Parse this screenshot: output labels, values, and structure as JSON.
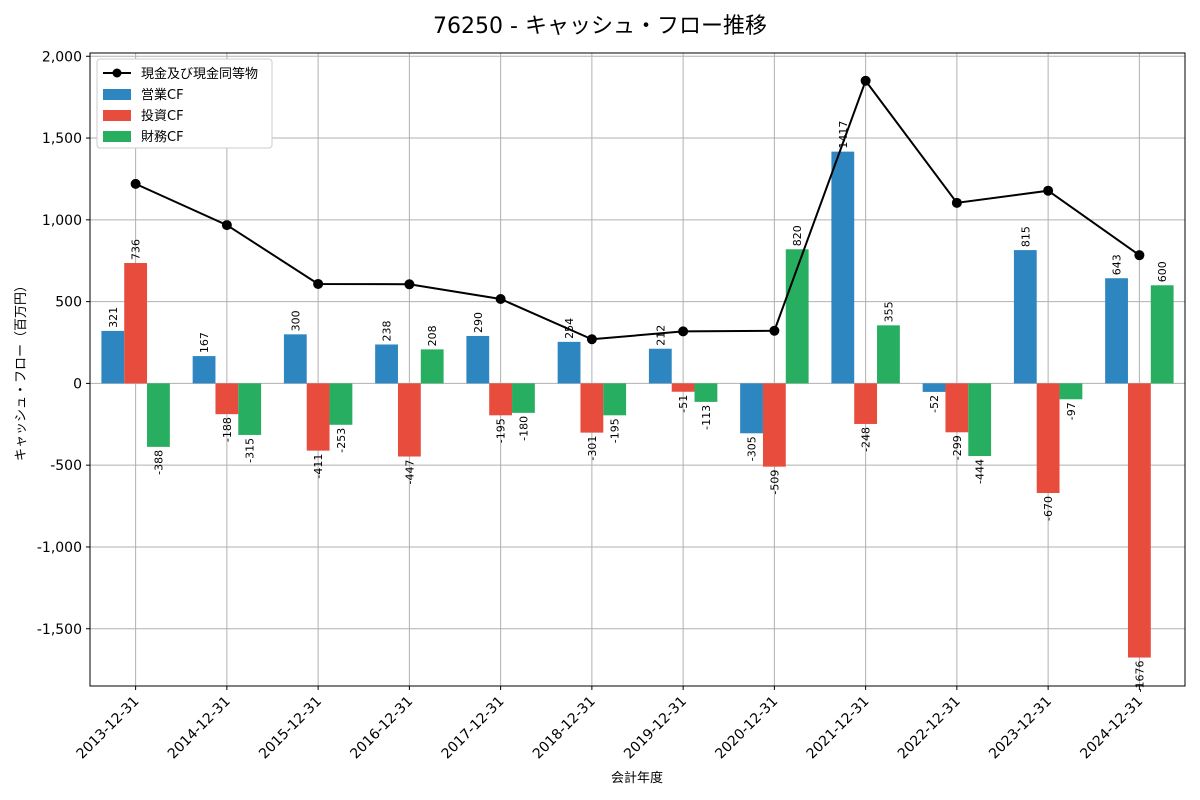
{
  "chart_data": {
    "type": "bar",
    "title": "76250 - キャッシュ・フロー推移",
    "xlabel": "会計年度",
    "ylabel": "キャッシュ・フロー（百万円）",
    "ylim": [
      -1850,
      2020
    ],
    "yticks": [
      2000,
      1500,
      1000,
      500,
      0,
      -500,
      -1000,
      -1500
    ],
    "ytick_labels": [
      "2,000",
      "1,500",
      "1,000",
      "500",
      "0",
      "-500",
      "-1,000",
      "-1,500"
    ],
    "grid": true,
    "legend_position": "top-left",
    "categories": [
      "2013-12-31",
      "2014-12-31",
      "2015-12-31",
      "2016-12-31",
      "2017-12-31",
      "2018-12-31",
      "2019-12-31",
      "2020-12-31",
      "2021-12-31",
      "2022-12-31",
      "2023-12-31",
      "2024-12-31"
    ],
    "series": [
      {
        "name": "営業CF",
        "kind": "bar",
        "color": "#2e86c1",
        "values": [
          321,
          167,
          300,
          238,
          290,
          254,
          212,
          -305,
          1417,
          -52,
          815,
          643
        ]
      },
      {
        "name": "投資CF",
        "kind": "bar",
        "color": "#e74c3c",
        "values": [
          736,
          -188,
          -411,
          -447,
          -195,
          -301,
          -51,
          -509,
          -248,
          -299,
          -670,
          -1676
        ]
      },
      {
        "name": "財務CF",
        "kind": "bar",
        "color": "#27ae60",
        "values": [
          -388,
          -315,
          -253,
          208,
          -180,
          -195,
          -113,
          820,
          355,
          -444,
          -97,
          600
        ]
      },
      {
        "name": "現金及び現金同等物",
        "kind": "line",
        "color": "#000000",
        "values": [
          1220,
          968,
          608,
          606,
          516,
          270,
          318,
          322,
          1850,
          1104,
          1178,
          784
        ]
      }
    ]
  }
}
